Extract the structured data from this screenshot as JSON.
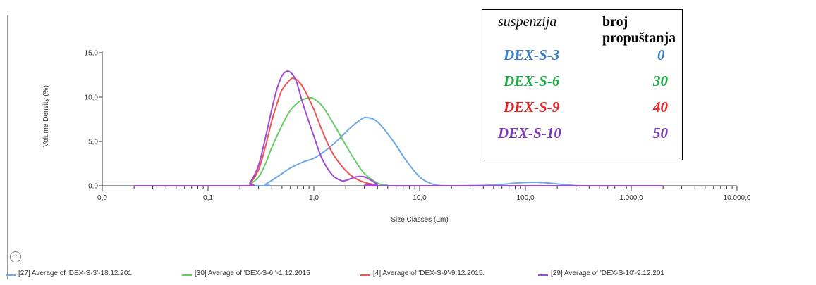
{
  "chart_data": {
    "type": "line",
    "xscale": "log",
    "xlim": [
      0.01,
      10000
    ],
    "ylim": [
      0,
      15
    ],
    "xlabel": "Size Classes (µm)",
    "ylabel": "Volume Density (%)",
    "xticks": [
      0.01,
      0.1,
      1,
      10,
      100,
      1000,
      10000
    ],
    "xtick_labels": [
      "0,0",
      "0,1",
      "1,0",
      "10,0",
      "100,0",
      "1.000,0",
      "10.000,0"
    ],
    "yticks": [
      0,
      5,
      10,
      15
    ],
    "ytick_labels": [
      "0,0",
      "5,0",
      "10,0",
      "15,0"
    ],
    "grid": false,
    "series": [
      {
        "name": "[27] Average of 'DEX-S-3'-18.12.201",
        "color": "#6fa8e6",
        "x": [
          0.02,
          0.3,
          0.35,
          0.45,
          0.6,
          0.8,
          1.0,
          1.3,
          1.7,
          2.2,
          2.8,
          3.2,
          4.0,
          5.5,
          7.5,
          10,
          12.5,
          15,
          20,
          40,
          60,
          80,
          120,
          170,
          250,
          350,
          500,
          1000,
          2000
        ],
        "y": [
          0,
          0,
          0.2,
          1.0,
          2.0,
          2.7,
          3.1,
          4.0,
          5.2,
          6.5,
          7.5,
          7.7,
          7.2,
          5.2,
          2.8,
          1.0,
          0.3,
          0.05,
          0,
          0.05,
          0.15,
          0.3,
          0.4,
          0.3,
          0.1,
          0,
          0,
          0,
          0
        ]
      },
      {
        "name": "[30] Average of 'DEX-S-6 '-1.12.2015",
        "color": "#66cc66",
        "x": [
          0.02,
          0.22,
          0.25,
          0.3,
          0.35,
          0.4,
          0.5,
          0.6,
          0.75,
          0.9,
          1.0,
          1.2,
          1.5,
          2.0,
          2.5,
          3.0,
          4.0,
          5.0,
          6.0,
          2000
        ],
        "y": [
          0,
          0,
          0.2,
          1.0,
          2.5,
          4.3,
          6.8,
          8.5,
          9.6,
          9.9,
          9.8,
          9.0,
          7.2,
          4.6,
          2.7,
          1.4,
          0.3,
          0.05,
          0,
          0
        ]
      },
      {
        "name": "[4] Average of 'DEX-S-9'-9.12.2015.",
        "color": "#ee5555",
        "x": [
          0.02,
          0.22,
          0.25,
          0.3,
          0.35,
          0.4,
          0.45,
          0.5,
          0.6,
          0.65,
          0.7,
          0.8,
          1.0,
          1.2,
          1.5,
          2.0,
          2.5,
          3.0,
          4.0,
          5.0,
          2000
        ],
        "y": [
          0,
          0,
          0.3,
          1.8,
          4.5,
          7.3,
          9.3,
          10.8,
          12.0,
          12.1,
          11.9,
          11.0,
          8.6,
          6.2,
          3.7,
          1.7,
          0.8,
          0.4,
          0.05,
          0,
          0
        ]
      },
      {
        "name": "[29] Average of 'DEX-S-10'-9.12.201",
        "color": "#a04ad4",
        "x": [
          0.02,
          0.22,
          0.25,
          0.3,
          0.35,
          0.4,
          0.45,
          0.5,
          0.55,
          0.6,
          0.65,
          0.7,
          0.8,
          1.0,
          1.2,
          1.5,
          1.8,
          2.0,
          2.5,
          3.0,
          3.5,
          4.0,
          5.0,
          2000
        ],
        "y": [
          0,
          0,
          0.4,
          2.3,
          5.5,
          8.6,
          11.0,
          12.4,
          12.9,
          12.8,
          12.3,
          11.4,
          9.0,
          5.6,
          3.0,
          1.2,
          0.6,
          0.6,
          1.0,
          1.0,
          0.6,
          0.2,
          0,
          0
        ]
      }
    ]
  },
  "legend_box": {
    "header_left": "suspenzija",
    "header_right": "broj propuštanja",
    "rows": [
      {
        "name": "DEX-S-3",
        "value": "0",
        "color": "#3a7fd4"
      },
      {
        "name": "DEX-S-6",
        "value": "30",
        "color": "#1fae45"
      },
      {
        "name": "DEX-S-9",
        "value": "40",
        "color": "#e82424"
      },
      {
        "name": "DEX-S-10",
        "value": "50",
        "color": "#7a3ab8"
      }
    ]
  },
  "collapse_icon": "chevron-up-icon",
  "collapse_glyph": "⌃"
}
